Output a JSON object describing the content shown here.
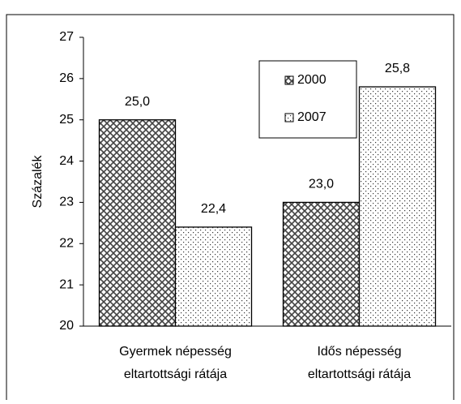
{
  "chart_data": {
    "type": "bar",
    "y_label": "Százalék",
    "categories": [
      "Gyermek népesség\neltartottsági rátája",
      "Idős népesség\neltartottsági rátája"
    ],
    "series": [
      {
        "name": "2000",
        "color": "#808080",
        "pattern": "crosshatch",
        "values": [
          25.0,
          23.0
        ],
        "value_labels": [
          "25,0",
          "23,0"
        ]
      },
      {
        "name": "2007",
        "color": "#808080",
        "pattern": "dots",
        "values": [
          22.4,
          25.8
        ],
        "value_labels": [
          "22,4",
          "25,8"
        ]
      }
    ],
    "ylim": [
      20,
      27
    ],
    "yticks": [
      20,
      21,
      22,
      23,
      24,
      25,
      26,
      27
    ],
    "grid": false,
    "legend": "top-right"
  }
}
